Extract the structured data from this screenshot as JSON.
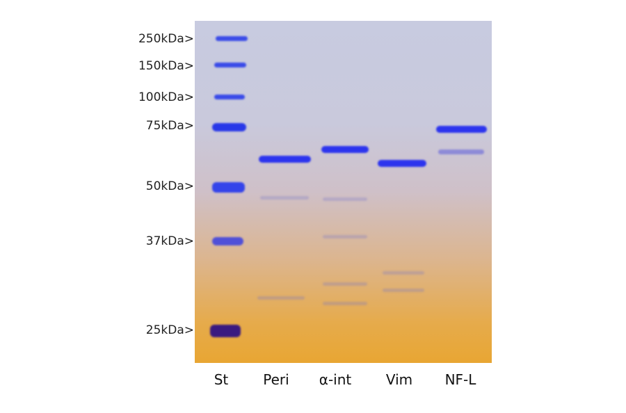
{
  "figure": {
    "type": "SDS-PAGE gel",
    "marker_labels": [
      "250kDa>",
      "150kDa>",
      "100kDa>",
      "75kDa>",
      "50kDa>",
      "37kDa>",
      "25kDa>"
    ],
    "lane_labels": [
      "St",
      "Peri",
      "α-int",
      "Vim",
      "NF-L"
    ],
    "colors": {
      "band": "#2c34ee",
      "gel_top": "#c8cbe0",
      "gel_bottom": "#e8a633"
    }
  }
}
